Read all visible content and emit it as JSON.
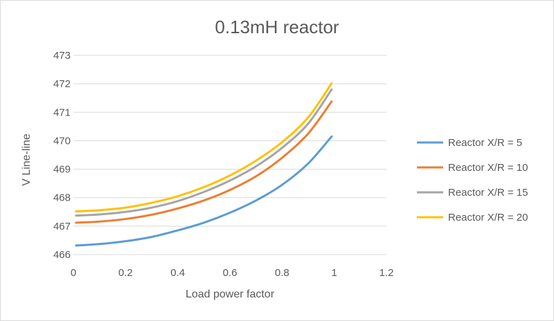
{
  "chart_data": {
    "type": "line",
    "title": "0.13mH reactor",
    "xlabel": "Load power factor",
    "ylabel": "V Line-line",
    "xlim": [
      0,
      1.2
    ],
    "ylim": [
      466,
      473
    ],
    "xticks": [
      "0",
      "0.2",
      "0.4",
      "0.6",
      "0.8",
      "1",
      "1.2"
    ],
    "yticks": [
      "466",
      "467",
      "468",
      "469",
      "470",
      "471",
      "472",
      "473"
    ],
    "grid": "horizontal",
    "legend_position": "right",
    "x": [
      0.01,
      0.1,
      0.2,
      0.3,
      0.4,
      0.5,
      0.6,
      0.7,
      0.8,
      0.9,
      0.99
    ],
    "series": [
      {
        "name": "Reactor X/R = 5",
        "color": "#5B9BD5",
        "values": [
          466.32,
          466.37,
          466.47,
          466.62,
          466.85,
          467.12,
          467.47,
          467.9,
          468.45,
          469.2,
          470.15
        ]
      },
      {
        "name": "Reactor X/R = 10",
        "color": "#ED7D31",
        "values": [
          467.12,
          467.16,
          467.25,
          467.4,
          467.62,
          467.9,
          468.27,
          468.75,
          469.4,
          470.25,
          471.38
        ]
      },
      {
        "name": "Reactor X/R = 15",
        "color": "#A5A5A5",
        "values": [
          467.37,
          467.41,
          467.5,
          467.65,
          467.88,
          468.2,
          468.6,
          469.1,
          469.75,
          470.6,
          471.8
        ]
      },
      {
        "name": "Reactor X/R = 20",
        "color": "#FFC000",
        "values": [
          467.52,
          467.56,
          467.65,
          467.82,
          468.05,
          468.37,
          468.78,
          469.3,
          469.95,
          470.82,
          472.02
        ]
      }
    ]
  }
}
